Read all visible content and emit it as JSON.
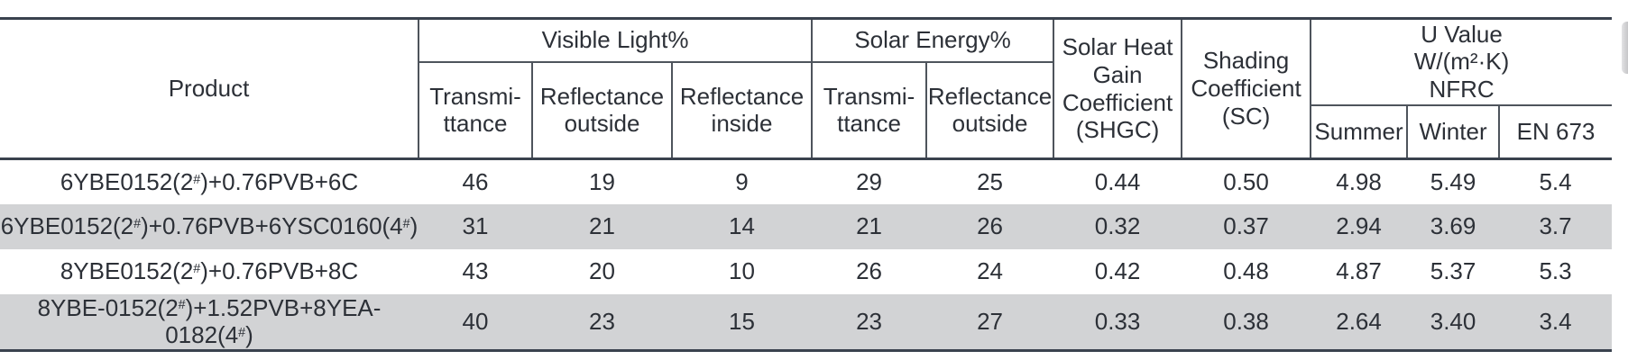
{
  "table": {
    "header": {
      "product": "Product",
      "visible_light_group": "Visible Light%",
      "solar_energy_group": "Solar Energy%",
      "shgc": "Solar Heat\nGain\nCoefficient\n(SHGC)",
      "sc": "Shading\nCoefficient\n(SC)",
      "u_value_group": "U Value\nW/(m²·K)\nNFRC",
      "vl_transmittance": "Transmi-\nttance",
      "vl_reflectance_outside": "Reflectance\noutside",
      "vl_reflectance_inside": "Reflectance\ninside",
      "se_transmittance": "Transmi-\nttance",
      "se_reflectance_outside": "Reflectance\noutside",
      "summer": "Summer",
      "winter": "Winter",
      "en673": "EN 673"
    },
    "rows": [
      {
        "product": "6YBE0152(2#)+0.76PVB+6C",
        "values": [
          "46",
          "19",
          "9",
          "29",
          "25",
          "0.44",
          "0.50",
          "4.98",
          "5.49",
          "5.4"
        ]
      },
      {
        "product": "6YBE0152(2#)+0.76PVB+6YSC0160(4#)",
        "values": [
          "31",
          "21",
          "14",
          "21",
          "26",
          "0.32",
          "0.37",
          "2.94",
          "3.69",
          "3.7"
        ]
      },
      {
        "product": "8YBE0152(2#)+0.76PVB+8C",
        "values": [
          "43",
          "20",
          "10",
          "26",
          "24",
          "0.42",
          "0.48",
          "4.87",
          "5.37",
          "5.3"
        ]
      },
      {
        "product": "8YBE-0152(2#)+1.52PVB+8YEA-0182(4#)",
        "values": [
          "40",
          "23",
          "15",
          "23",
          "27",
          "0.33",
          "0.38",
          "2.64",
          "3.40",
          "3.4"
        ]
      }
    ],
    "colors": {
      "stripe": "#d2d3d5",
      "thick_line": "#3a424e",
      "thin_line": "#4e545c",
      "text": "#2c3037"
    }
  }
}
